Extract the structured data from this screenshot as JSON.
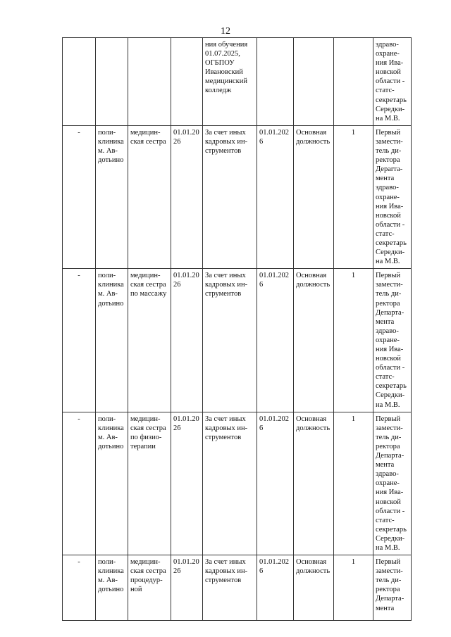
{
  "page_number": "12",
  "rows": [
    {
      "c1": "",
      "c2": "",
      "c3": "",
      "c4": "",
      "c5": "ния обучения\n01.07.2025,\nОГБПОУ\nИвановский\nмедицинский\nколледж",
      "c6": "",
      "c7": "",
      "c8": "",
      "c9": "здраво-\nохране-\nния Ива-\nновской\nобласти -\nстатс-\nсекретарь\nСередки-\nна М.В."
    },
    {
      "c1": "-",
      "c2": "поли-\nклиника\nм. Ав-\nдотьино",
      "c3": "медицин-\nская сестра",
      "c4": "01.01.20\n26",
      "c5": "За счет иных\nкадровых ин-\nструментов",
      "c6": "01.01.202\n6",
      "c7": "Основная\nдолжность",
      "c8": "1",
      "c9": "Первый\nзамести-\nтель ди-\nректора\nДеparта-\nмента\nздраво-\nохране-\nния Ива-\nновской\nобласти -\nстатс-\nсекретарь\nСередки-\nна М.В."
    },
    {
      "c1": "-",
      "c2": "поли-\nклиника\nм. Ав-\nдотьино",
      "c3": "медицин-\nская сестра\nпо массажу",
      "c4": "01.01.20\n26",
      "c5": "За счет иных\nкадровых ин-\nструментов",
      "c6": "01.01.202\n6",
      "c7": "Основная\nдолжность",
      "c8": "1",
      "c9": "Первый\nзамести-\nтель ди-\nректора\nДепарта-\nмента\nздраво-\nохране-\nния Ива-\nновской\nобласти -\nстатс-\nсекретарь\nСередки-\nна М.В."
    },
    {
      "c1": "-",
      "c2": "поли-\nклиника\nм. Ав-\nдотьино",
      "c3": "медицин-\nская сестра\nпо физио-\nтерапии",
      "c4": "01.01.20\n26",
      "c5": "За счет иных\nкадровых ин-\nструментов",
      "c6": "01.01.202\n6",
      "c7": "Основная\nдолжность",
      "c8": "1",
      "c9": "Первый\nзамести-\nтель ди-\nректора\nДепарта-\nмента\nздраво-\nохране-\nния Ива-\nновской\nобласти -\nстатс-\nсекретарь\nСередки-\nна М.В."
    },
    {
      "c1": "-",
      "c2": "поли-\nклиника\nм. Ав-\nдотьино",
      "c3": "медицин-\nская сестра\nпроцедур-\nной",
      "c4": "01.01.20\n26",
      "c5": "За счет иных\nкадровых ин-\nструментов",
      "c6": "01.01.202\n6",
      "c7": "Основная\nдолжность",
      "c8": "1",
      "c9": "Первый\nзамести-\nтель ди-\nректора\nДепарта-\nмента"
    }
  ]
}
